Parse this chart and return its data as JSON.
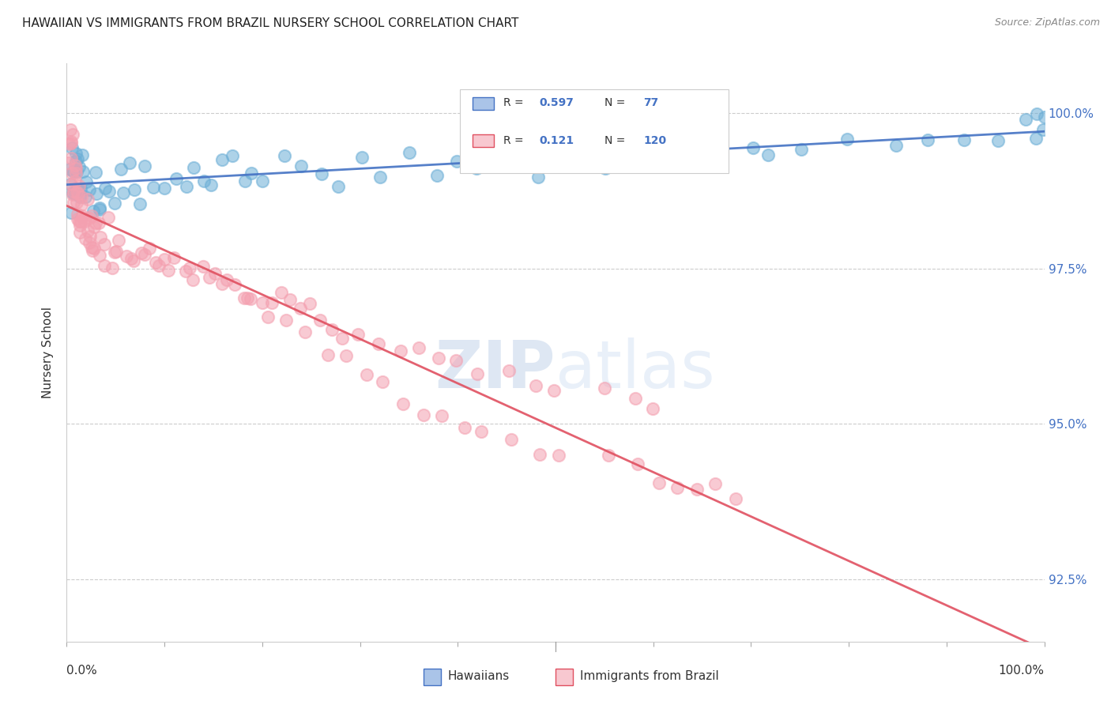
{
  "title": "HAWAIIAN VS IMMIGRANTS FROM BRAZIL NURSERY SCHOOL CORRELATION CHART",
  "source": "Source: ZipAtlas.com",
  "ylabel": "Nursery School",
  "ytick_values": [
    100.0,
    97.5,
    95.0,
    92.5
  ],
  "xmin": 0.0,
  "xmax": 100.0,
  "ymin": 91.5,
  "ymax": 100.8,
  "hawaiian_color": "#6baed6",
  "brazil_color": "#f4a0b0",
  "hawaiian_line_color": "#4472c4",
  "brazil_line_color": "#e05060",
  "hawaiian_R": 0.597,
  "hawaiian_N": 77,
  "brazil_R": 0.121,
  "brazil_N": 120,
  "hawaiians_label": "Hawaiians",
  "brazil_label": "Immigrants from Brazil",
  "hawaiian_x": [
    0.3,
    0.4,
    0.5,
    0.5,
    0.6,
    0.7,
    0.8,
    0.8,
    0.9,
    1.0,
    1.1,
    1.1,
    1.2,
    1.3,
    1.4,
    1.5,
    1.6,
    1.8,
    1.9,
    2.0,
    2.2,
    2.5,
    2.8,
    3.0,
    3.2,
    3.5,
    4.0,
    4.5,
    5.0,
    5.5,
    6.0,
    6.5,
    7.0,
    7.5,
    8.0,
    9.0,
    10.0,
    11.0,
    12.0,
    13.0,
    14.0,
    15.0,
    16.0,
    17.0,
    18.0,
    19.0,
    20.0,
    22.0,
    24.0,
    26.0,
    28.0,
    30.0,
    32.0,
    35.0,
    38.0,
    40.0,
    42.0,
    45.0,
    48.0,
    50.0,
    55.0,
    58.0,
    60.0,
    65.0,
    70.0,
    72.0,
    75.0,
    80.0,
    85.0,
    88.0,
    92.0,
    95.0,
    98.0,
    99.0,
    99.5,
    99.8,
    100.0
  ],
  "hawaiian_y": [
    98.5,
    99.2,
    98.8,
    99.5,
    99.0,
    98.7,
    99.3,
    99.1,
    98.6,
    99.4,
    98.9,
    99.2,
    98.8,
    99.0,
    98.5,
    99.1,
    98.7,
    99.3,
    98.6,
    99.0,
    98.8,
    98.5,
    99.1,
    98.7,
    98.4,
    98.6,
    98.9,
    98.8,
    98.5,
    99.0,
    98.7,
    99.1,
    98.8,
    98.6,
    99.2,
    98.9,
    98.7,
    99.0,
    98.8,
    99.1,
    98.9,
    99.0,
    99.1,
    99.2,
    99.0,
    99.1,
    98.9,
    99.2,
    99.0,
    99.1,
    98.8,
    99.2,
    99.0,
    99.3,
    99.1,
    99.2,
    99.0,
    99.3,
    99.1,
    99.4,
    99.2,
    99.3,
    99.5,
    99.3,
    99.5,
    99.2,
    99.4,
    99.6,
    99.4,
    99.5,
    99.7,
    99.5,
    99.8,
    99.7,
    99.9,
    99.8,
    100.0
  ],
  "brazil_x": [
    0.2,
    0.3,
    0.3,
    0.4,
    0.4,
    0.5,
    0.5,
    0.5,
    0.6,
    0.6,
    0.7,
    0.7,
    0.8,
    0.8,
    0.9,
    0.9,
    1.0,
    1.0,
    1.1,
    1.1,
    1.2,
    1.2,
    1.3,
    1.3,
    1.4,
    1.5,
    1.5,
    1.6,
    1.7,
    1.8,
    1.9,
    2.0,
    2.0,
    2.1,
    2.2,
    2.3,
    2.4,
    2.5,
    2.6,
    2.7,
    2.8,
    2.9,
    3.0,
    3.2,
    3.4,
    3.6,
    3.8,
    4.0,
    4.2,
    4.5,
    4.8,
    5.0,
    5.5,
    6.0,
    6.5,
    7.0,
    7.5,
    8.0,
    8.5,
    9.0,
    9.5,
    10.0,
    10.5,
    11.0,
    12.0,
    13.0,
    14.0,
    15.0,
    16.0,
    17.0,
    18.0,
    19.0,
    20.0,
    21.0,
    22.0,
    23.0,
    24.0,
    25.0,
    26.0,
    27.0,
    28.0,
    30.0,
    32.0,
    34.0,
    36.0,
    38.0,
    40.0,
    42.0,
    45.0,
    48.0,
    50.0,
    55.0,
    58.0,
    60.0,
    12.5,
    14.5,
    16.5,
    18.5,
    20.5,
    22.5,
    24.5,
    26.5,
    28.5,
    30.5,
    32.5,
    34.5,
    36.5,
    38.5,
    40.5,
    42.5,
    45.5,
    48.5,
    50.5,
    55.5,
    58.5,
    60.5,
    62.5,
    64.5,
    66.5,
    68.5
  ],
  "brazil_y": [
    99.5,
    99.3,
    99.7,
    99.1,
    99.5,
    99.0,
    99.4,
    99.8,
    98.8,
    99.2,
    98.7,
    99.1,
    98.6,
    99.0,
    98.5,
    98.9,
    98.4,
    98.8,
    98.3,
    98.7,
    98.3,
    98.6,
    98.2,
    98.6,
    98.2,
    98.5,
    98.8,
    98.2,
    98.5,
    98.1,
    98.4,
    98.0,
    98.3,
    98.6,
    98.0,
    98.4,
    97.9,
    98.3,
    97.9,
    98.2,
    97.8,
    98.1,
    97.8,
    98.1,
    97.7,
    98.0,
    97.7,
    97.9,
    98.2,
    97.6,
    97.9,
    97.8,
    98.0,
    97.6,
    97.8,
    97.5,
    97.7,
    97.6,
    97.8,
    97.5,
    97.6,
    97.7,
    97.5,
    97.6,
    97.5,
    97.4,
    97.4,
    97.3,
    97.3,
    97.2,
    97.1,
    97.1,
    97.0,
    97.0,
    97.0,
    96.9,
    96.8,
    96.8,
    96.7,
    96.6,
    96.5,
    96.5,
    96.4,
    96.3,
    96.2,
    96.1,
    96.0,
    95.9,
    95.8,
    95.7,
    95.6,
    95.5,
    95.4,
    95.3,
    97.5,
    97.3,
    97.2,
    97.0,
    96.8,
    96.6,
    96.4,
    96.2,
    96.0,
    95.8,
    95.6,
    95.4,
    95.2,
    95.0,
    94.9,
    94.8,
    94.7,
    94.6,
    94.5,
    94.4,
    94.3,
    94.2,
    94.1,
    94.0,
    93.9,
    93.8
  ]
}
